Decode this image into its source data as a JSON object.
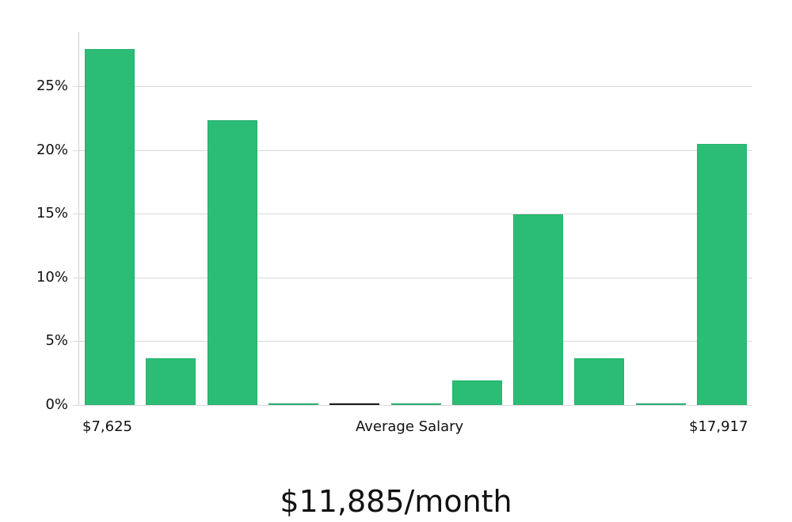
{
  "chart_data": {
    "type": "bar",
    "title": "$11,885/month",
    "xlabel": "Average Salary",
    "ylabel": "",
    "x_range_labels": {
      "min": "$7,625",
      "max": "$17,917"
    },
    "categories": [
      "bin1",
      "bin2",
      "bin3",
      "bin4",
      "bin5",
      "bin6",
      "bin7",
      "bin8",
      "bin9",
      "bin10",
      "bin11"
    ],
    "values": [
      28.0,
      3.7,
      22.4,
      0.1,
      0.1,
      0.1,
      1.9,
      15.0,
      3.7,
      0.1,
      20.5
    ],
    "average_bin_index": 4,
    "yticks": [
      "0%",
      "5%",
      "10%",
      "15%",
      "20%",
      "25%"
    ],
    "ylim": [
      0,
      29.3
    ],
    "grid": true,
    "bar_color": "#2bbd76",
    "average_marker_color": "#1a1a1a"
  },
  "labels": {
    "x_min": "$7,625",
    "x_center": "Average Salary",
    "x_max": "$17,917",
    "summary": "$11,885/month"
  },
  "yticks": [
    "0%",
    "5%",
    "10%",
    "15%",
    "20%",
    "25%"
  ]
}
